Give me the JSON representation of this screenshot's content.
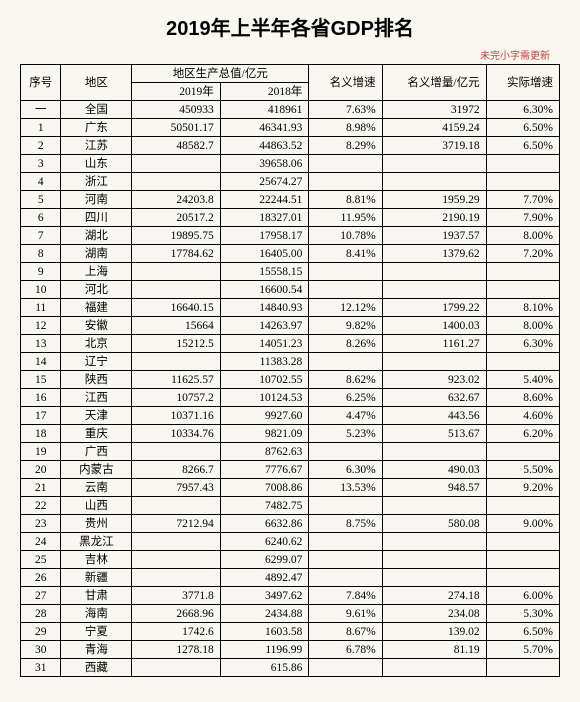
{
  "title": "2019年上半年各省GDP排名",
  "subnote": "未完小字需更新",
  "headers": {
    "seq": "序号",
    "region": "地区",
    "gdp_group": "地区生产总值/亿元",
    "y2019": "2019年",
    "y2018": "2018年",
    "nominal_rate": "名义增速",
    "nominal_inc": "名义增量/亿元",
    "real_rate": "实际增速"
  },
  "rows": [
    {
      "seq": "一",
      "region": "全国",
      "g2019": "450933",
      "g2018": "418961",
      "nrate": "7.63%",
      "ninc": "31972",
      "rrate": "6.30%"
    },
    {
      "seq": "1",
      "region": "广东",
      "g2019": "50501.17",
      "g2018": "46341.93",
      "nrate": "8.98%",
      "ninc": "4159.24",
      "rrate": "6.50%"
    },
    {
      "seq": "2",
      "region": "江苏",
      "g2019": "48582.7",
      "g2018": "44863.52",
      "nrate": "8.29%",
      "ninc": "3719.18",
      "rrate": "6.50%"
    },
    {
      "seq": "3",
      "region": "山东",
      "g2019": "",
      "g2018": "39658.06",
      "nrate": "",
      "ninc": "",
      "rrate": ""
    },
    {
      "seq": "4",
      "region": "浙江",
      "g2019": "",
      "g2018": "25674.27",
      "nrate": "",
      "ninc": "",
      "rrate": ""
    },
    {
      "seq": "5",
      "region": "河南",
      "g2019": "24203.8",
      "g2018": "22244.51",
      "nrate": "8.81%",
      "ninc": "1959.29",
      "rrate": "7.70%"
    },
    {
      "seq": "6",
      "region": "四川",
      "g2019": "20517.2",
      "g2018": "18327.01",
      "nrate": "11.95%",
      "ninc": "2190.19",
      "rrate": "7.90%"
    },
    {
      "seq": "7",
      "region": "湖北",
      "g2019": "19895.75",
      "g2018": "17958.17",
      "nrate": "10.78%",
      "ninc": "1937.57",
      "rrate": "8.00%"
    },
    {
      "seq": "8",
      "region": "湖南",
      "g2019": "17784.62",
      "g2018": "16405.00",
      "nrate": "8.41%",
      "ninc": "1379.62",
      "rrate": "7.20%"
    },
    {
      "seq": "9",
      "region": "上海",
      "g2019": "",
      "g2018": "15558.15",
      "nrate": "",
      "ninc": "",
      "rrate": ""
    },
    {
      "seq": "10",
      "region": "河北",
      "g2019": "",
      "g2018": "16600.54",
      "nrate": "",
      "ninc": "",
      "rrate": ""
    },
    {
      "seq": "11",
      "region": "福建",
      "g2019": "16640.15",
      "g2018": "14840.93",
      "nrate": "12.12%",
      "ninc": "1799.22",
      "rrate": "8.10%"
    },
    {
      "seq": "12",
      "region": "安徽",
      "g2019": "15664",
      "g2018": "14263.97",
      "nrate": "9.82%",
      "ninc": "1400.03",
      "rrate": "8.00%"
    },
    {
      "seq": "13",
      "region": "北京",
      "g2019": "15212.5",
      "g2018": "14051.23",
      "nrate": "8.26%",
      "ninc": "1161.27",
      "rrate": "6.30%"
    },
    {
      "seq": "14",
      "region": "辽宁",
      "g2019": "",
      "g2018": "11383.28",
      "nrate": "",
      "ninc": "",
      "rrate": ""
    },
    {
      "seq": "15",
      "region": "陕西",
      "g2019": "11625.57",
      "g2018": "10702.55",
      "nrate": "8.62%",
      "ninc": "923.02",
      "rrate": "5.40%"
    },
    {
      "seq": "16",
      "region": "江西",
      "g2019": "10757.2",
      "g2018": "10124.53",
      "nrate": "6.25%",
      "ninc": "632.67",
      "rrate": "8.60%"
    },
    {
      "seq": "17",
      "region": "天津",
      "g2019": "10371.16",
      "g2018": "9927.60",
      "nrate": "4.47%",
      "ninc": "443.56",
      "rrate": "4.60%"
    },
    {
      "seq": "18",
      "region": "重庆",
      "g2019": "10334.76",
      "g2018": "9821.09",
      "nrate": "5.23%",
      "ninc": "513.67",
      "rrate": "6.20%"
    },
    {
      "seq": "19",
      "region": "广西",
      "g2019": "",
      "g2018": "8762.63",
      "nrate": "",
      "ninc": "",
      "rrate": ""
    },
    {
      "seq": "20",
      "region": "内蒙古",
      "g2019": "8266.7",
      "g2018": "7776.67",
      "nrate": "6.30%",
      "ninc": "490.03",
      "rrate": "5.50%"
    },
    {
      "seq": "21",
      "region": "云南",
      "g2019": "7957.43",
      "g2018": "7008.86",
      "nrate": "13.53%",
      "ninc": "948.57",
      "rrate": "9.20%"
    },
    {
      "seq": "22",
      "region": "山西",
      "g2019": "",
      "g2018": "7482.75",
      "nrate": "",
      "ninc": "",
      "rrate": ""
    },
    {
      "seq": "23",
      "region": "贵州",
      "g2019": "7212.94",
      "g2018": "6632.86",
      "nrate": "8.75%",
      "ninc": "580.08",
      "rrate": "9.00%"
    },
    {
      "seq": "24",
      "region": "黑龙江",
      "g2019": "",
      "g2018": "6240.62",
      "nrate": "",
      "ninc": "",
      "rrate": ""
    },
    {
      "seq": "25",
      "region": "吉林",
      "g2019": "",
      "g2018": "6299.07",
      "nrate": "",
      "ninc": "",
      "rrate": ""
    },
    {
      "seq": "26",
      "region": "新疆",
      "g2019": "",
      "g2018": "4892.47",
      "nrate": "",
      "ninc": "",
      "rrate": ""
    },
    {
      "seq": "27",
      "region": "甘肃",
      "g2019": "3771.8",
      "g2018": "3497.62",
      "nrate": "7.84%",
      "ninc": "274.18",
      "rrate": "6.00%"
    },
    {
      "seq": "28",
      "region": "海南",
      "g2019": "2668.96",
      "g2018": "2434.88",
      "nrate": "9.61%",
      "ninc": "234.08",
      "rrate": "5.30%"
    },
    {
      "seq": "29",
      "region": "宁夏",
      "g2019": "1742.6",
      "g2018": "1603.58",
      "nrate": "8.67%",
      "ninc": "139.02",
      "rrate": "6.50%"
    },
    {
      "seq": "30",
      "region": "青海",
      "g2019": "1278.18",
      "g2018": "1196.99",
      "nrate": "6.78%",
      "ninc": "81.19",
      "rrate": "5.70%"
    },
    {
      "seq": "31",
      "region": "西藏",
      "g2019": "",
      "g2018": "615.86",
      "nrate": "",
      "ninc": "",
      "rrate": ""
    }
  ],
  "style": {
    "background_color": "#f8f7f0",
    "border_color": "#000000",
    "title_fontsize": 20,
    "cell_fontsize": 11.5,
    "col_widths": {
      "seq": 32,
      "region": 56,
      "gdp": 70,
      "rate": 58,
      "inc": 70,
      "real": 58
    }
  }
}
